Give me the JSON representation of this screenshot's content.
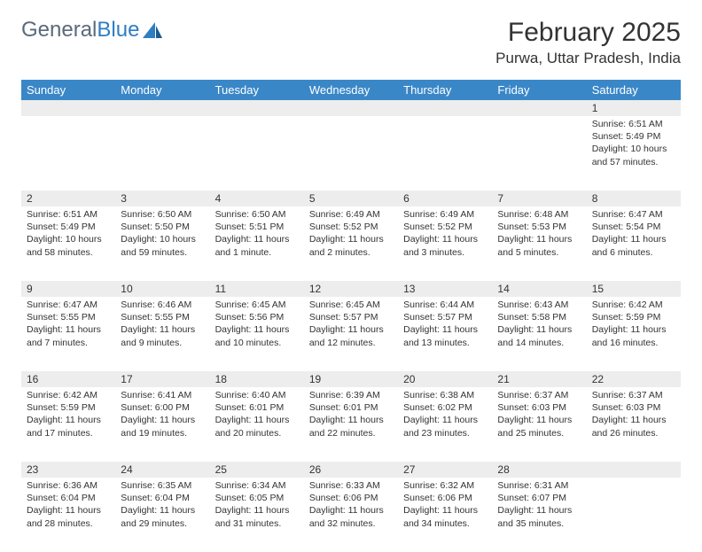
{
  "logo": {
    "text1": "General",
    "text2": "Blue"
  },
  "title": "February 2025",
  "location": "Purwa, Uttar Pradesh, India",
  "colors": {
    "header_bg": "#3a87c8",
    "header_fg": "#ffffff",
    "daynum_bg": "#ededed",
    "text": "#333333",
    "logo_gray": "#5a6a7a",
    "logo_blue": "#2f7ec2",
    "page_bg": "#ffffff"
  },
  "weekdays": [
    "Sunday",
    "Monday",
    "Tuesday",
    "Wednesday",
    "Thursday",
    "Friday",
    "Saturday"
  ],
  "weeks": [
    [
      null,
      null,
      null,
      null,
      null,
      null,
      {
        "n": "1",
        "sr": "Sunrise: 6:51 AM",
        "ss": "Sunset: 5:49 PM",
        "d1": "Daylight: 10 hours",
        "d2": "and 57 minutes."
      }
    ],
    [
      {
        "n": "2",
        "sr": "Sunrise: 6:51 AM",
        "ss": "Sunset: 5:49 PM",
        "d1": "Daylight: 10 hours",
        "d2": "and 58 minutes."
      },
      {
        "n": "3",
        "sr": "Sunrise: 6:50 AM",
        "ss": "Sunset: 5:50 PM",
        "d1": "Daylight: 10 hours",
        "d2": "and 59 minutes."
      },
      {
        "n": "4",
        "sr": "Sunrise: 6:50 AM",
        "ss": "Sunset: 5:51 PM",
        "d1": "Daylight: 11 hours",
        "d2": "and 1 minute."
      },
      {
        "n": "5",
        "sr": "Sunrise: 6:49 AM",
        "ss": "Sunset: 5:52 PM",
        "d1": "Daylight: 11 hours",
        "d2": "and 2 minutes."
      },
      {
        "n": "6",
        "sr": "Sunrise: 6:49 AM",
        "ss": "Sunset: 5:52 PM",
        "d1": "Daylight: 11 hours",
        "d2": "and 3 minutes."
      },
      {
        "n": "7",
        "sr": "Sunrise: 6:48 AM",
        "ss": "Sunset: 5:53 PM",
        "d1": "Daylight: 11 hours",
        "d2": "and 5 minutes."
      },
      {
        "n": "8",
        "sr": "Sunrise: 6:47 AM",
        "ss": "Sunset: 5:54 PM",
        "d1": "Daylight: 11 hours",
        "d2": "and 6 minutes."
      }
    ],
    [
      {
        "n": "9",
        "sr": "Sunrise: 6:47 AM",
        "ss": "Sunset: 5:55 PM",
        "d1": "Daylight: 11 hours",
        "d2": "and 7 minutes."
      },
      {
        "n": "10",
        "sr": "Sunrise: 6:46 AM",
        "ss": "Sunset: 5:55 PM",
        "d1": "Daylight: 11 hours",
        "d2": "and 9 minutes."
      },
      {
        "n": "11",
        "sr": "Sunrise: 6:45 AM",
        "ss": "Sunset: 5:56 PM",
        "d1": "Daylight: 11 hours",
        "d2": "and 10 minutes."
      },
      {
        "n": "12",
        "sr": "Sunrise: 6:45 AM",
        "ss": "Sunset: 5:57 PM",
        "d1": "Daylight: 11 hours",
        "d2": "and 12 minutes."
      },
      {
        "n": "13",
        "sr": "Sunrise: 6:44 AM",
        "ss": "Sunset: 5:57 PM",
        "d1": "Daylight: 11 hours",
        "d2": "and 13 minutes."
      },
      {
        "n": "14",
        "sr": "Sunrise: 6:43 AM",
        "ss": "Sunset: 5:58 PM",
        "d1": "Daylight: 11 hours",
        "d2": "and 14 minutes."
      },
      {
        "n": "15",
        "sr": "Sunrise: 6:42 AM",
        "ss": "Sunset: 5:59 PM",
        "d1": "Daylight: 11 hours",
        "d2": "and 16 minutes."
      }
    ],
    [
      {
        "n": "16",
        "sr": "Sunrise: 6:42 AM",
        "ss": "Sunset: 5:59 PM",
        "d1": "Daylight: 11 hours",
        "d2": "and 17 minutes."
      },
      {
        "n": "17",
        "sr": "Sunrise: 6:41 AM",
        "ss": "Sunset: 6:00 PM",
        "d1": "Daylight: 11 hours",
        "d2": "and 19 minutes."
      },
      {
        "n": "18",
        "sr": "Sunrise: 6:40 AM",
        "ss": "Sunset: 6:01 PM",
        "d1": "Daylight: 11 hours",
        "d2": "and 20 minutes."
      },
      {
        "n": "19",
        "sr": "Sunrise: 6:39 AM",
        "ss": "Sunset: 6:01 PM",
        "d1": "Daylight: 11 hours",
        "d2": "and 22 minutes."
      },
      {
        "n": "20",
        "sr": "Sunrise: 6:38 AM",
        "ss": "Sunset: 6:02 PM",
        "d1": "Daylight: 11 hours",
        "d2": "and 23 minutes."
      },
      {
        "n": "21",
        "sr": "Sunrise: 6:37 AM",
        "ss": "Sunset: 6:03 PM",
        "d1": "Daylight: 11 hours",
        "d2": "and 25 minutes."
      },
      {
        "n": "22",
        "sr": "Sunrise: 6:37 AM",
        "ss": "Sunset: 6:03 PM",
        "d1": "Daylight: 11 hours",
        "d2": "and 26 minutes."
      }
    ],
    [
      {
        "n": "23",
        "sr": "Sunrise: 6:36 AM",
        "ss": "Sunset: 6:04 PM",
        "d1": "Daylight: 11 hours",
        "d2": "and 28 minutes."
      },
      {
        "n": "24",
        "sr": "Sunrise: 6:35 AM",
        "ss": "Sunset: 6:04 PM",
        "d1": "Daylight: 11 hours",
        "d2": "and 29 minutes."
      },
      {
        "n": "25",
        "sr": "Sunrise: 6:34 AM",
        "ss": "Sunset: 6:05 PM",
        "d1": "Daylight: 11 hours",
        "d2": "and 31 minutes."
      },
      {
        "n": "26",
        "sr": "Sunrise: 6:33 AM",
        "ss": "Sunset: 6:06 PM",
        "d1": "Daylight: 11 hours",
        "d2": "and 32 minutes."
      },
      {
        "n": "27",
        "sr": "Sunrise: 6:32 AM",
        "ss": "Sunset: 6:06 PM",
        "d1": "Daylight: 11 hours",
        "d2": "and 34 minutes."
      },
      {
        "n": "28",
        "sr": "Sunrise: 6:31 AM",
        "ss": "Sunset: 6:07 PM",
        "d1": "Daylight: 11 hours",
        "d2": "and 35 minutes."
      },
      null
    ]
  ]
}
